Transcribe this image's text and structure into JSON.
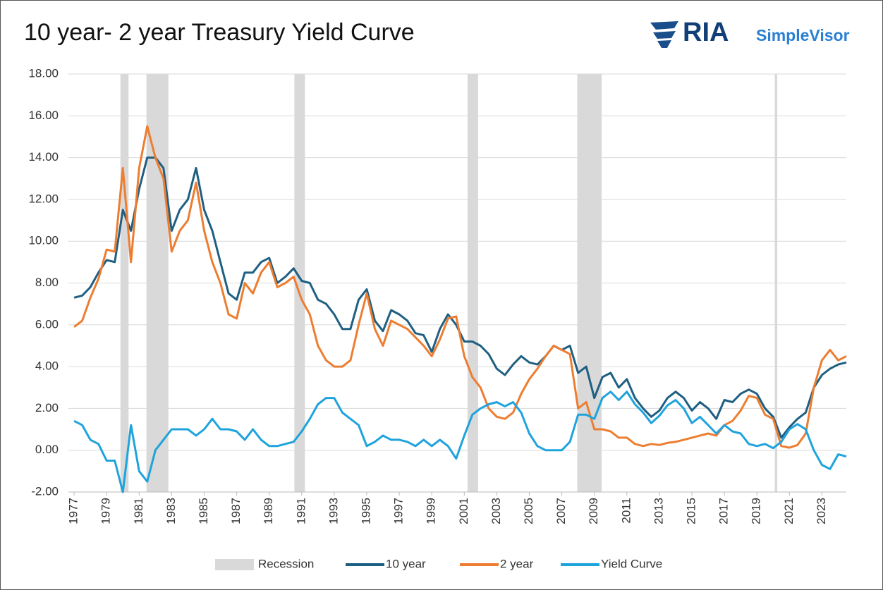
{
  "chart_data": {
    "type": "line",
    "title": "10 year- 2 year Treasury Yield Curve",
    "brand": "RIA",
    "brand_sub": "SimpleVisor",
    "x": [
      1977,
      1977.5,
      1978,
      1978.5,
      1979,
      1979.5,
      1980,
      1980.5,
      1981,
      1981.5,
      1982,
      1982.5,
      1983,
      1983.5,
      1984,
      1984.5,
      1985,
      1985.5,
      1986,
      1986.5,
      1987,
      1987.5,
      1988,
      1988.5,
      1989,
      1989.5,
      1990,
      1990.5,
      1991,
      1991.5,
      1992,
      1992.5,
      1993,
      1993.5,
      1994,
      1994.5,
      1995,
      1995.5,
      1996,
      1996.5,
      1997,
      1997.5,
      1998,
      1998.5,
      1999,
      1999.5,
      2000,
      2000.5,
      2001,
      2001.5,
      2002,
      2002.5,
      2003,
      2003.5,
      2004,
      2004.5,
      2005,
      2005.5,
      2006,
      2006.5,
      2007,
      2007.5,
      2008,
      2008.5,
      2009,
      2009.5,
      2010,
      2010.5,
      2011,
      2011.5,
      2012,
      2012.5,
      2013,
      2013.5,
      2014,
      2014.5,
      2015,
      2015.5,
      2016,
      2016.5,
      2017,
      2017.5,
      2018,
      2018.5,
      2019,
      2019.5,
      2020,
      2020.5,
      2021,
      2021.5,
      2022,
      2022.5,
      2023,
      2023.5,
      2024,
      2024.5
    ],
    "recessions": {
      "name": "Recession",
      "color": "#d9d9d9",
      "periods": [
        [
          1979.85,
          1980.35
        ],
        [
          1981.45,
          1982.8
        ],
        [
          1990.55,
          1991.2
        ],
        [
          2001.2,
          2001.85
        ],
        [
          2007.95,
          2009.45
        ],
        [
          2020.1,
          2020.25
        ]
      ]
    },
    "series": [
      {
        "name": "10 year",
        "color": "#1f5f82",
        "values": [
          7.3,
          7.4,
          7.8,
          8.5,
          9.1,
          9.0,
          11.5,
          10.5,
          12.5,
          14.0,
          14.0,
          13.5,
          10.5,
          11.5,
          12.0,
          13.5,
          11.5,
          10.5,
          9.0,
          7.5,
          7.2,
          8.5,
          8.5,
          9.0,
          9.2,
          8.0,
          8.3,
          8.7,
          8.1,
          8.0,
          7.2,
          7.0,
          6.5,
          5.8,
          5.8,
          7.2,
          7.7,
          6.2,
          5.7,
          6.7,
          6.5,
          6.2,
          5.6,
          5.5,
          4.7,
          5.8,
          6.5,
          6.0,
          5.2,
          5.2,
          5.0,
          4.6,
          3.9,
          3.6,
          4.1,
          4.5,
          4.2,
          4.1,
          4.5,
          5.0,
          4.8,
          5.0,
          3.7,
          4.0,
          2.5,
          3.5,
          3.7,
          3.0,
          3.4,
          2.5,
          2.0,
          1.6,
          1.9,
          2.5,
          2.8,
          2.5,
          1.9,
          2.3,
          2.0,
          1.5,
          2.4,
          2.3,
          2.7,
          2.9,
          2.7,
          2.0,
          1.6,
          0.6,
          1.1,
          1.5,
          1.8,
          3.0,
          3.6,
          3.9,
          4.1,
          4.2
        ]
      },
      {
        "name": "2 year",
        "color": "#ed7d31",
        "values": [
          5.9,
          6.2,
          7.3,
          8.2,
          9.6,
          9.5,
          13.5,
          9.0,
          13.5,
          15.5,
          14.0,
          13.0,
          9.5,
          10.5,
          11.0,
          12.8,
          10.5,
          9.0,
          8.0,
          6.5,
          6.3,
          8.0,
          7.5,
          8.5,
          9.0,
          7.8,
          8.0,
          8.3,
          7.2,
          6.5,
          5.0,
          4.3,
          4.0,
          4.0,
          4.3,
          6.0,
          7.5,
          5.8,
          5.0,
          6.2,
          6.0,
          5.8,
          5.4,
          5.0,
          4.5,
          5.3,
          6.3,
          6.4,
          4.5,
          3.5,
          3.0,
          2.0,
          1.6,
          1.5,
          1.8,
          2.7,
          3.4,
          3.9,
          4.5,
          5.0,
          4.8,
          4.6,
          2.0,
          2.3,
          1.0,
          1.0,
          0.9,
          0.6,
          0.6,
          0.3,
          0.2,
          0.3,
          0.25,
          0.35,
          0.4,
          0.5,
          0.6,
          0.7,
          0.8,
          0.7,
          1.2,
          1.4,
          1.9,
          2.6,
          2.5,
          1.7,
          1.5,
          0.2,
          0.12,
          0.25,
          0.8,
          3.0,
          4.3,
          4.8,
          4.3,
          4.5
        ]
      },
      {
        "name": "Yield Curve",
        "color": "#1fa3dc",
        "values": [
          1.4,
          1.2,
          0.5,
          0.3,
          -0.5,
          -0.5,
          -2.0,
          1.2,
          -1.0,
          -1.5,
          0.0,
          0.5,
          1.0,
          1.0,
          1.0,
          0.7,
          1.0,
          1.5,
          1.0,
          1.0,
          0.9,
          0.5,
          1.0,
          0.5,
          0.2,
          0.2,
          0.3,
          0.4,
          0.9,
          1.5,
          2.2,
          2.5,
          2.5,
          1.8,
          1.5,
          1.2,
          0.2,
          0.4,
          0.7,
          0.5,
          0.5,
          0.4,
          0.2,
          0.5,
          0.2,
          0.5,
          0.2,
          -0.4,
          0.7,
          1.7,
          2.0,
          2.2,
          2.3,
          2.1,
          2.3,
          1.8,
          0.8,
          0.2,
          0.0,
          0.0,
          0.0,
          0.4,
          1.7,
          1.7,
          1.5,
          2.5,
          2.8,
          2.4,
          2.8,
          2.2,
          1.8,
          1.3,
          1.65,
          2.15,
          2.4,
          2.0,
          1.3,
          1.6,
          1.2,
          0.8,
          1.2,
          0.9,
          0.8,
          0.3,
          0.2,
          0.3,
          0.1,
          0.4,
          1.0,
          1.25,
          1.0,
          0.0,
          -0.7,
          -0.9,
          -0.2,
          -0.3
        ]
      }
    ],
    "xlim": [
      1976.65,
      2024.5
    ],
    "xticks": [
      1977,
      1979,
      1981,
      1983,
      1985,
      1987,
      1989,
      1991,
      1993,
      1995,
      1997,
      1999,
      2001,
      2003,
      2005,
      2007,
      2009,
      2011,
      2013,
      2015,
      2017,
      2019,
      2021,
      2023
    ],
    "ylim": [
      -2,
      18
    ],
    "yticks": [
      {
        "value": -2,
        "label": "-2.00"
      },
      {
        "value": 0,
        "label": "0.00"
      },
      {
        "value": 2,
        "label": "2.00"
      },
      {
        "value": 4,
        "label": "4.00"
      },
      {
        "value": 6,
        "label": "6.00"
      },
      {
        "value": 8,
        "label": "8.00"
      },
      {
        "value": 10,
        "label": "10.00"
      },
      {
        "value": 12,
        "label": "12.00"
      },
      {
        "value": 14,
        "label": "14.00"
      },
      {
        "value": 16,
        "label": "16.00"
      },
      {
        "value": 18,
        "label": "18.00"
      }
    ],
    "grid": true,
    "legend": "bottom"
  }
}
